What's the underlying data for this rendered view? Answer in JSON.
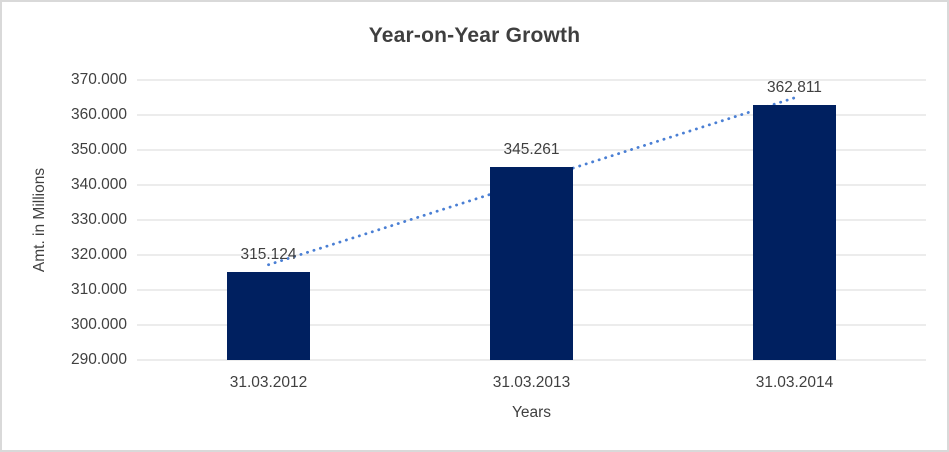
{
  "chart_data": {
    "type": "bar",
    "title": "Year-on-Year Growth",
    "xlabel": "Years",
    "ylabel": "Amt. in Millions",
    "categories": [
      "31.03.2012",
      "31.03.2013",
      "31.03.2014"
    ],
    "values": [
      315.124,
      345.261,
      362.811
    ],
    "data_labels": [
      "315.124",
      "345.261",
      "362.811"
    ],
    "ylim": [
      290,
      370
    ],
    "ytick_step": 10,
    "ytick_labels": [
      "290.000",
      "300.000",
      "310.000",
      "320.000",
      "330.000",
      "340.000",
      "350.000",
      "360.000",
      "370.000"
    ],
    "grid": true,
    "legend": "none",
    "trendline": {
      "type": "linear",
      "style": "dotted",
      "series": "values"
    }
  },
  "colors": {
    "bar": "#002060",
    "trendline": "#4a7fd4",
    "gridline": "#d9d9d9",
    "text": "#404040",
    "title": "#3f3f3f",
    "border": "#d9d9d9",
    "background": "#ffffff"
  }
}
